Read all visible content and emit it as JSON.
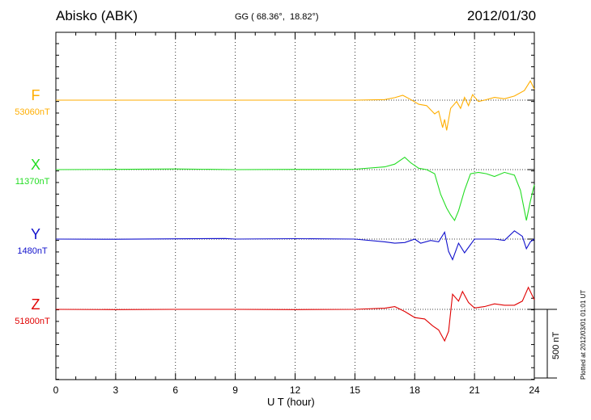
{
  "header": {
    "station": "Abisko (ABK)",
    "coords_prefix": "GG ( 68.36°,",
    "coords_lon": "18.82°)",
    "date": "2012/01/30"
  },
  "footer": {
    "plotted": "Plotted at 2012/03/01 01:01 UT"
  },
  "chart_data": {
    "type": "line",
    "title": "",
    "xlabel": "U T (hour)",
    "ylabel": "",
    "xlim": [
      0,
      24
    ],
    "xticks": [
      0,
      3,
      6,
      9,
      12,
      15,
      18,
      21,
      24
    ],
    "x_tick_labels": [
      "0",
      "3",
      "6",
      "9",
      "12",
      "15",
      "18",
      "21",
      "24"
    ],
    "grid": "vertical dotted every 3 h, dotted baseline per channel",
    "scale_bar": {
      "value": 500,
      "label": "500 nT"
    },
    "y_scale_per_channel_nT_span_of_scale_bar": 500,
    "series": [
      {
        "name": "F",
        "baseline": "53060nT",
        "color": "#ffae00",
        "points": [
          [
            0,
            0
          ],
          [
            3,
            0
          ],
          [
            6,
            0
          ],
          [
            9,
            0
          ],
          [
            12,
            0
          ],
          [
            15,
            0
          ],
          [
            16.5,
            4
          ],
          [
            17,
            18
          ],
          [
            17.4,
            35
          ],
          [
            17.8,
            5
          ],
          [
            18.2,
            -30
          ],
          [
            18.6,
            -40
          ],
          [
            19.0,
            -100
          ],
          [
            19.2,
            -80
          ],
          [
            19.4,
            -200
          ],
          [
            19.5,
            -140
          ],
          [
            19.6,
            -220
          ],
          [
            19.8,
            -60
          ],
          [
            20.1,
            -10
          ],
          [
            20.3,
            -60
          ],
          [
            20.5,
            20
          ],
          [
            20.7,
            -40
          ],
          [
            20.9,
            40
          ],
          [
            21.2,
            -10
          ],
          [
            21.5,
            0
          ],
          [
            22,
            20
          ],
          [
            22.5,
            10
          ],
          [
            23,
            30
          ],
          [
            23.5,
            70
          ],
          [
            23.8,
            140
          ],
          [
            24,
            80
          ]
        ]
      },
      {
        "name": "X",
        "baseline": "11370nT",
        "color": "#22dd22",
        "points": [
          [
            0,
            0
          ],
          [
            3,
            2
          ],
          [
            6,
            5
          ],
          [
            9,
            0
          ],
          [
            12,
            2
          ],
          [
            15,
            3
          ],
          [
            16.5,
            20
          ],
          [
            17,
            40
          ],
          [
            17.5,
            90
          ],
          [
            17.8,
            50
          ],
          [
            18.2,
            10
          ],
          [
            18.6,
            0
          ],
          [
            19.0,
            -30
          ],
          [
            19.3,
            -180
          ],
          [
            19.6,
            -280
          ],
          [
            19.8,
            -330
          ],
          [
            20.0,
            -370
          ],
          [
            20.2,
            -300
          ],
          [
            20.5,
            -150
          ],
          [
            20.8,
            -30
          ],
          [
            21.2,
            -20
          ],
          [
            21.6,
            -30
          ],
          [
            22,
            -50
          ],
          [
            22.5,
            -20
          ],
          [
            23,
            -40
          ],
          [
            23.3,
            -150
          ],
          [
            23.6,
            -370
          ],
          [
            23.8,
            -230
          ],
          [
            24,
            -110
          ]
        ]
      },
      {
        "name": "Y",
        "baseline": "1480nT",
        "color": "#1010cc",
        "points": [
          [
            0,
            0
          ],
          [
            3,
            -1
          ],
          [
            6,
            2
          ],
          [
            8.5,
            4
          ],
          [
            9,
            0
          ],
          [
            12,
            3
          ],
          [
            15,
            0
          ],
          [
            16.5,
            -20
          ],
          [
            17,
            -30
          ],
          [
            17.5,
            -25
          ],
          [
            18,
            0
          ],
          [
            18.3,
            -30
          ],
          [
            18.8,
            -10
          ],
          [
            19.2,
            -20
          ],
          [
            19.5,
            50
          ],
          [
            19.7,
            -90
          ],
          [
            19.9,
            -150
          ],
          [
            20.2,
            -30
          ],
          [
            20.5,
            -100
          ],
          [
            21,
            0
          ],
          [
            22,
            0
          ],
          [
            22.5,
            -10
          ],
          [
            23,
            60
          ],
          [
            23.4,
            20
          ],
          [
            23.6,
            -70
          ],
          [
            23.8,
            -20
          ],
          [
            24,
            0
          ]
        ]
      },
      {
        "name": "Z",
        "baseline": "51800nT",
        "color": "#e00000",
        "points": [
          [
            0,
            0
          ],
          [
            3,
            -2
          ],
          [
            6,
            0
          ],
          [
            9,
            0
          ],
          [
            12,
            -2
          ],
          [
            15,
            0
          ],
          [
            16.5,
            8
          ],
          [
            17,
            20
          ],
          [
            17.5,
            -15
          ],
          [
            18,
            -60
          ],
          [
            18.5,
            -70
          ],
          [
            18.9,
            -120
          ],
          [
            19.2,
            -150
          ],
          [
            19.5,
            -230
          ],
          [
            19.7,
            -160
          ],
          [
            19.9,
            110
          ],
          [
            20.2,
            60
          ],
          [
            20.4,
            130
          ],
          [
            20.7,
            50
          ],
          [
            21,
            10
          ],
          [
            21.5,
            20
          ],
          [
            22,
            40
          ],
          [
            22.5,
            30
          ],
          [
            23,
            30
          ],
          [
            23.4,
            60
          ],
          [
            23.7,
            160
          ],
          [
            24,
            70
          ]
        ]
      }
    ]
  }
}
